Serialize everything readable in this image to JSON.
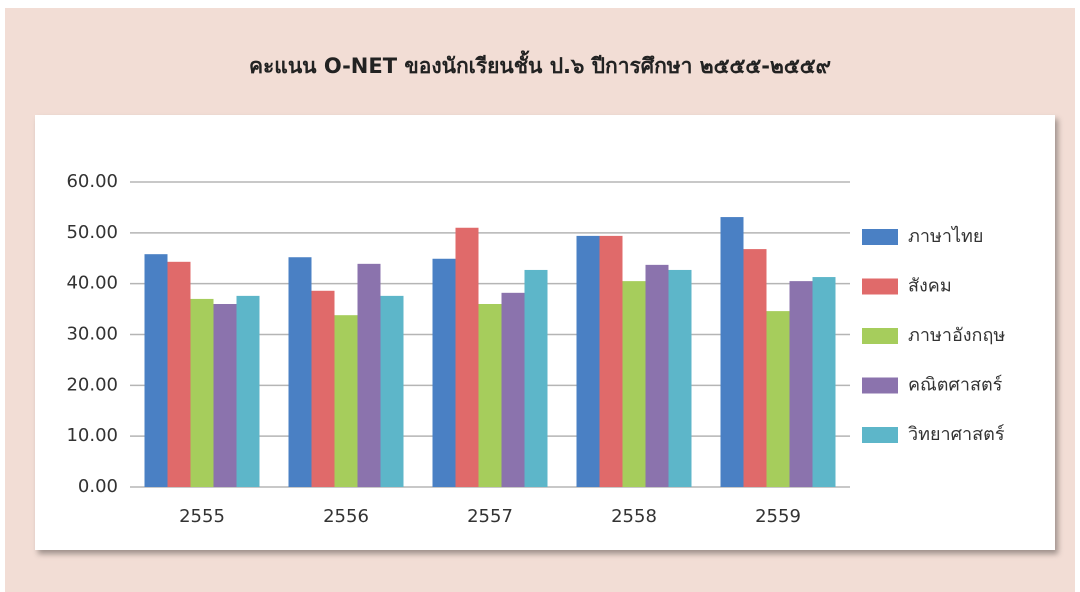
{
  "chart_data": {
    "type": "bar",
    "title": "คะแนน O-NET ของนักเรียนชั้น ป.๖ ปีการศึกษา ๒๕๕๕-๒๕๕๙",
    "categories": [
      "2555",
      "2556",
      "2557",
      "2558",
      "2559"
    ],
    "series": [
      {
        "name": "ภาษาไทย",
        "color": "#4a80c4",
        "values": [
          45.8,
          45.2,
          44.9,
          49.4,
          53.1
        ]
      },
      {
        "name": "สังคม",
        "color": "#e06a6a",
        "values": [
          44.3,
          38.6,
          51.0,
          49.4,
          46.8
        ]
      },
      {
        "name": "ภาษาอังกฤษ",
        "color": "#a6cd5c",
        "values": [
          37.0,
          33.8,
          36.0,
          40.5,
          34.6
        ]
      },
      {
        "name": "คณิตศาสตร์",
        "color": "#8b73ad",
        "values": [
          36.0,
          43.9,
          38.2,
          43.7,
          40.5
        ]
      },
      {
        "name": "วิทยาศาสตร์",
        "color": "#5db6c9",
        "values": [
          37.6,
          37.6,
          42.7,
          42.7,
          41.3
        ]
      }
    ],
    "ylim": [
      0,
      60
    ],
    "yticks": [
      {
        "value": 0,
        "label": "0.00"
      },
      {
        "value": 10,
        "label": "10.00"
      },
      {
        "value": 20,
        "label": "20.00"
      },
      {
        "value": 30,
        "label": "30.00"
      },
      {
        "value": 40,
        "label": "40.00"
      },
      {
        "value": 50,
        "label": "50.00"
      },
      {
        "value": 60,
        "label": "60.00"
      }
    ],
    "grid": true,
    "legend": "right"
  }
}
